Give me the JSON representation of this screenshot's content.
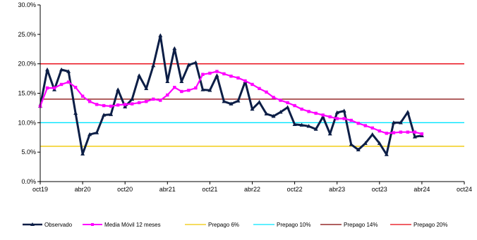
{
  "chart_data": {
    "type": "line",
    "title": "",
    "xlabel": "",
    "ylabel": "",
    "ylim": [
      0,
      30
    ],
    "y_ticks": [
      "0.0%",
      "5.0%",
      "10.0%",
      "15.0%",
      "20.0%",
      "25.0%",
      "30.0%"
    ],
    "x_ticks": [
      "oct19",
      "abr20",
      "oct20",
      "abr21",
      "oct21",
      "abr22",
      "oct22",
      "abr23",
      "oct23",
      "abr24",
      "oct24"
    ],
    "x_range_months": [
      0,
      60
    ],
    "grid": false,
    "legend_position": "bottom",
    "series": [
      {
        "name": "Observado",
        "color": "#0c1e46",
        "marker": "triangle",
        "values": [
          12.8,
          19.0,
          15.6,
          19.0,
          18.7,
          11.6,
          4.7,
          8.0,
          8.3,
          11.3,
          11.4,
          15.6,
          12.7,
          14.0,
          18.0,
          15.8,
          19.7,
          24.8,
          17.0,
          22.6,
          17.0,
          19.8,
          20.2,
          15.6,
          15.5,
          18.0,
          13.6,
          13.2,
          13.7,
          17.0,
          12.3,
          13.5,
          11.5,
          11.1,
          11.8,
          12.6,
          9.7,
          9.6,
          9.4,
          8.9,
          11.0,
          8.1,
          11.7,
          12.0,
          6.3,
          5.4,
          6.5,
          8.0,
          6.5,
          4.6,
          10.0,
          10.0,
          11.8,
          7.6,
          7.8
        ]
      },
      {
        "name": "Media Móvil 12 meses",
        "color": "#ff00ff",
        "marker": "square",
        "values": [
          12.8,
          15.9,
          15.9,
          16.5,
          16.9,
          16.0,
          14.5,
          13.6,
          13.1,
          12.9,
          12.8,
          13.0,
          13.1,
          13.2,
          13.4,
          13.6,
          14.0,
          13.8,
          14.7,
          16.0,
          15.3,
          15.5,
          15.9,
          18.2,
          18.4,
          18.7,
          18.3,
          17.9,
          17.6,
          17.1,
          16.5,
          15.8,
          15.2,
          14.3,
          13.8,
          13.4,
          12.9,
          12.3,
          11.9,
          11.6,
          11.3,
          11.0,
          10.7,
          10.7,
          10.4,
          9.9,
          9.5,
          9.1,
          8.6,
          8.2,
          8.3,
          8.4,
          8.4,
          8.4,
          8.1
        ]
      },
      {
        "name": "Prepago 6%",
        "color": "#f0c800",
        "constant": 6
      },
      {
        "name": "Prepago 10%",
        "color": "#00e5ff",
        "constant": 10
      },
      {
        "name": "Prepago 14%",
        "color": "#800000",
        "constant": 14
      },
      {
        "name": "Prepago 20%",
        "color": "#e8000c",
        "constant": 20
      }
    ]
  }
}
